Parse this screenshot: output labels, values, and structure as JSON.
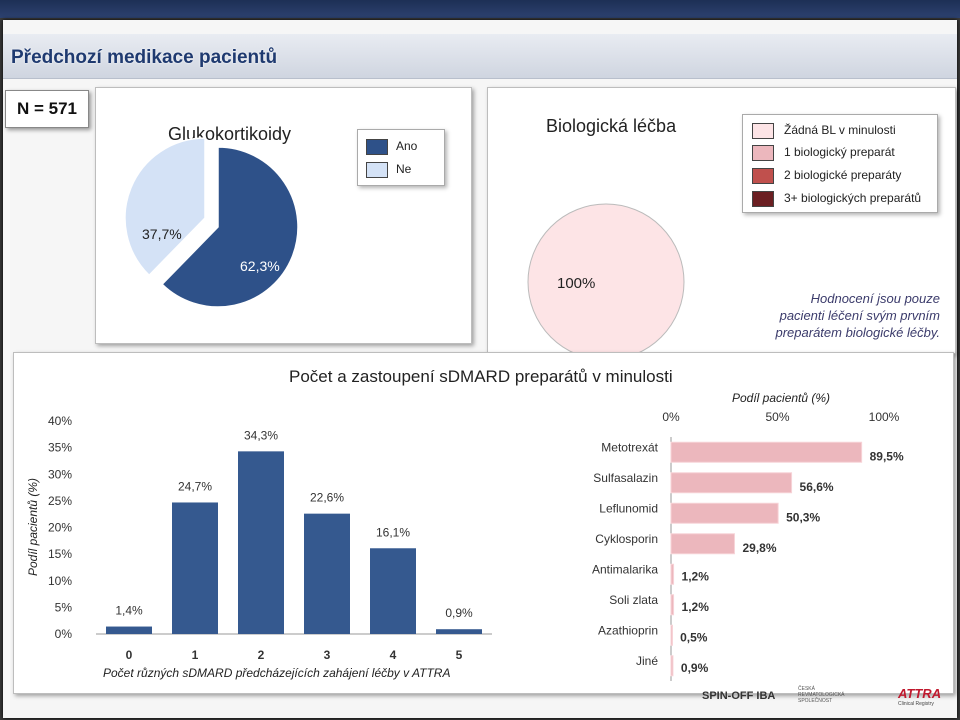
{
  "page": {
    "title": "Předchozí medikace pacientů",
    "n_label": "N = 571",
    "note_lines": [
      "Hodnocení jsou pouze",
      "pacienti léčení svým prvním",
      "preparátem biologické léčby."
    ]
  },
  "logos": {
    "spinoff": "SPIN-OFF IBA",
    "society": "ČESKÁ REVMATOLOGICKÁ SPOLEČNOST",
    "attra": "ATTRA",
    "attra_sub": "Clinical Registry"
  },
  "colors": {
    "dark_blue": "#2e5189",
    "light_blue": "#d4e2f6",
    "bar_blue": "#35598f",
    "pink_pale": "#fde4e6",
    "pink": "#ecb7bd",
    "red": "#c0504d",
    "maroon": "#6b1f22"
  },
  "chart_data": [
    {
      "type": "pie",
      "title": "Glukokortikoidy",
      "categories": [
        "Ano",
        "Ne"
      ],
      "values": [
        62.3,
        37.7
      ],
      "labels": [
        "62,3%",
        "37,7%"
      ],
      "legend": [
        "Ano",
        "Ne"
      ],
      "legend_position": "top-right"
    },
    {
      "type": "pie",
      "title": "Biologická léčba",
      "categories": [
        "Žádná BL v minulosti",
        "1 biologický preparát",
        "2 biologické preparáty",
        "3+ biologických preparátů"
      ],
      "values": [
        100,
        0,
        0,
        0
      ],
      "labels": [
        "100%"
      ],
      "legend": [
        "Žádná BL v minulosti",
        "1 biologický preparát",
        "2 biologické preparáty",
        "3+ biologických preparátů"
      ],
      "legend_position": "top-right"
    },
    {
      "type": "bar",
      "title": "Počet a zastoupení sDMARD preparátů v minulosti",
      "categories": [
        "0",
        "1",
        "2",
        "3",
        "4",
        "5"
      ],
      "values": [
        1.4,
        24.7,
        34.3,
        22.6,
        16.1,
        0.9
      ],
      "labels": [
        "1,4%",
        "24,7%",
        "34,3%",
        "22,6%",
        "16,1%",
        "0,9%"
      ],
      "xlabel": "Počet různých sDMARD předcházejících zahájení léčby v ATTRA",
      "ylabel": "Podíl pacientů (%)",
      "ylim": [
        0,
        40
      ],
      "yticks": [
        "0%",
        "5%",
        "10%",
        "15%",
        "20%",
        "25%",
        "30%",
        "35%",
        "40%"
      ]
    },
    {
      "type": "bar",
      "orientation": "horizontal",
      "categories": [
        "Metotrexát",
        "Sulfasalazin",
        "Leflunomid",
        "Cyklosporin",
        "Antimalarika",
        "Soli zlata",
        "Azathioprin",
        "Jiné"
      ],
      "values": [
        89.5,
        56.6,
        50.3,
        29.8,
        1.2,
        1.2,
        0.5,
        0.9
      ],
      "labels": [
        "89,5%",
        "56,6%",
        "50,3%",
        "29,8%",
        "1,2%",
        "1,2%",
        "0,5%",
        "0,9%"
      ],
      "xlabel": "Podíl pacientů (%)",
      "xlim": [
        0,
        100
      ],
      "xticks": [
        "0%",
        "50%",
        "100%"
      ]
    }
  ]
}
